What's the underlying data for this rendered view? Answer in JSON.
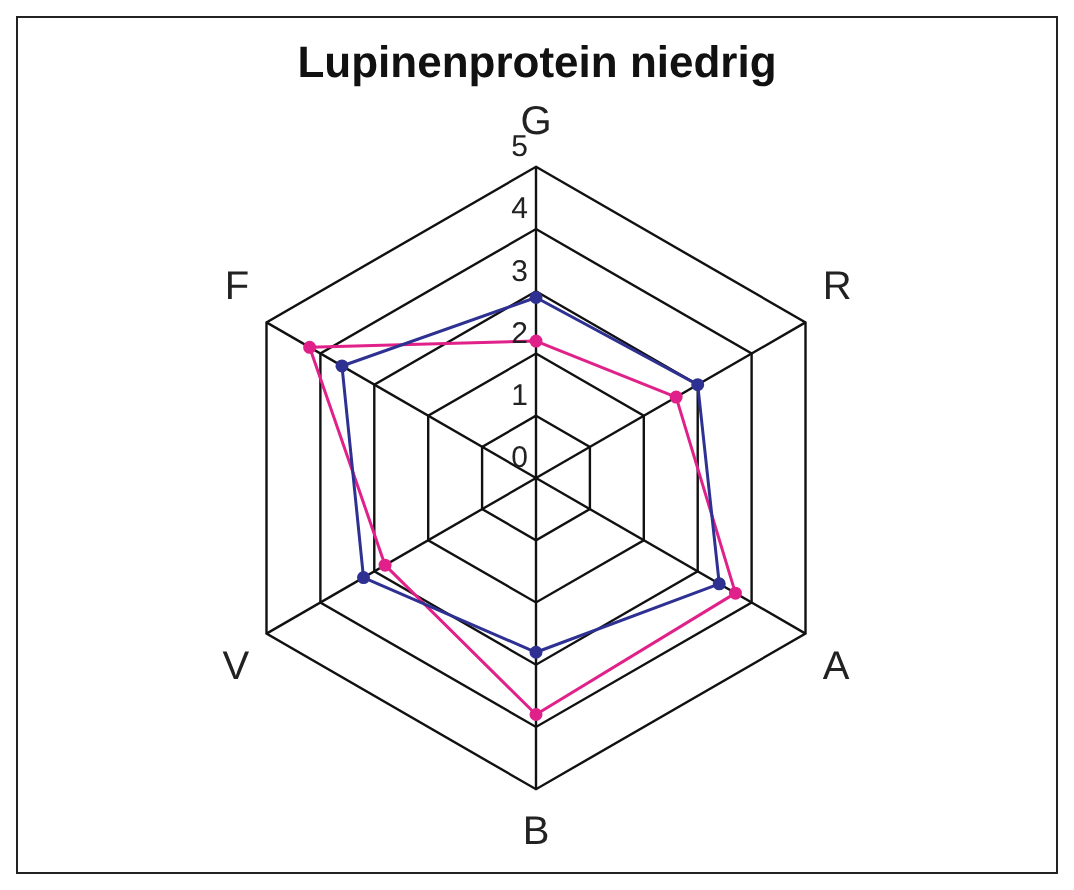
{
  "chart_data": {
    "type": "radar",
    "title": "Lupinenprotein niedrig",
    "categories": [
      "G",
      "R",
      "A",
      "B",
      "V",
      "F"
    ],
    "series": [
      {
        "color": "#2e3192",
        "values": [
          2.9,
          3.0,
          3.4,
          2.8,
          3.2,
          3.6
        ]
      },
      {
        "color": "#e0218a",
        "values": [
          2.2,
          2.6,
          3.7,
          3.8,
          2.8,
          4.2
        ]
      }
    ],
    "ylim": [
      0,
      5
    ],
    "yticks": [
      0,
      1,
      2,
      3,
      4,
      5
    ],
    "grid": true,
    "legend": false,
    "marker": "circle"
  }
}
